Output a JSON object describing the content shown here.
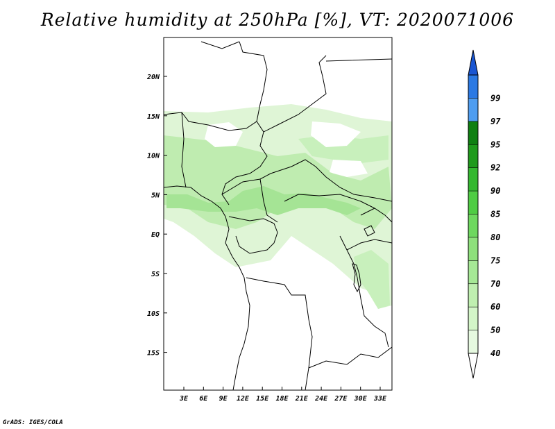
{
  "title": "Relative humidity at 250hPa [%], VT: 2020071006",
  "credit": "GrADS: IGES/COLA",
  "map": {
    "lat_labels": [
      "20N",
      "15N",
      "10N",
      "5N",
      "EQ",
      "5S",
      "10S",
      "15S"
    ],
    "lon_labels": [
      "3E",
      "6E",
      "9E",
      "12E",
      "15E",
      "18E",
      "21E",
      "24E",
      "27E",
      "30E",
      "33E"
    ]
  },
  "colorbar": {
    "labels": [
      "40",
      "50",
      "60",
      "70",
      "75",
      "80",
      "85",
      "90",
      "92",
      "95",
      "97",
      "99"
    ],
    "colors": [
      "#ffffff",
      "#e6f9e0",
      "#d3f5c8",
      "#bfefb0",
      "#a6e896",
      "#8ee07c",
      "#6ed85f",
      "#4fcc44",
      "#34b830",
      "#1f9a1c",
      "#0f8012",
      "#4f9df0",
      "#2b79e3",
      "#1a56d2"
    ]
  }
}
